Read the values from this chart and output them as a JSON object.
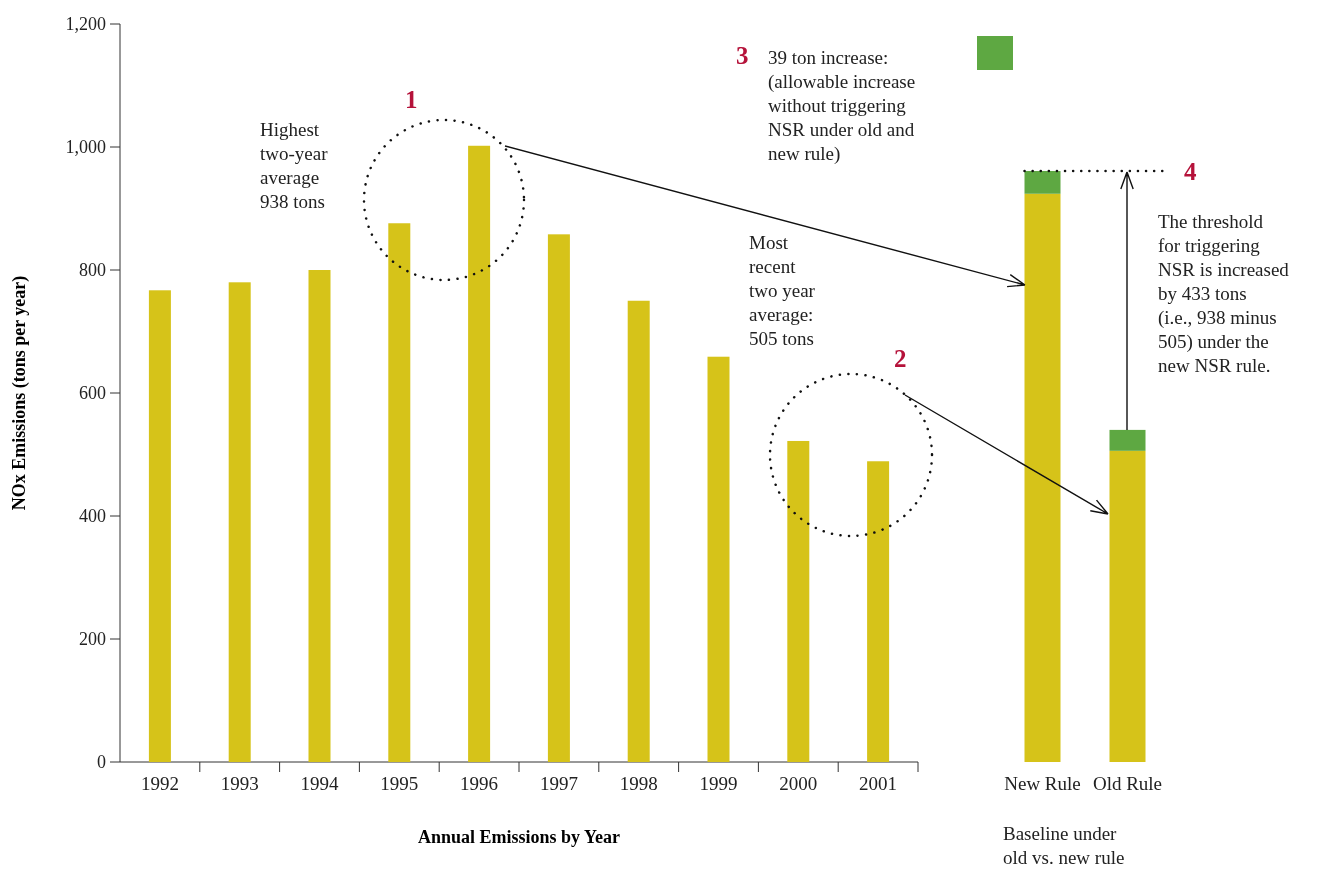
{
  "chart_data": [
    {
      "type": "bar",
      "categories": [
        "1992",
        "1993",
        "1994",
        "1995",
        "1996",
        "1997",
        "1998",
        "1999",
        "2000",
        "2001"
      ],
      "values": [
        767,
        780,
        800,
        876,
        1002,
        858,
        750,
        659,
        522,
        489
      ],
      "color": "#d6c319",
      "ylim": [
        0,
        1200
      ],
      "yticks": [
        0,
        200,
        400,
        600,
        800,
        {
          "value": 1000,
          "label": "1,000"
        },
        {
          "value": 1200,
          "label": "1,200"
        }
      ],
      "ylabel": "NOx Emissions (tons per year)",
      "xlabel": "Annual Emissions by Year",
      "annotations": [
        "1",
        "Highest two-year average 938 tons",
        "2",
        "Most recent two year average: 505 tons"
      ]
    },
    {
      "type": "bar",
      "stacked": true,
      "categories": [
        "New Rule",
        "Old Rule"
      ],
      "series": [
        {
          "color": "#d6c319",
          "values": [
            924,
            506
          ]
        },
        {
          "name": "39 ton increase: (allowable increase without triggering NSR under old and new rule)",
          "color": "#5ea842",
          "values": [
            37,
            34
          ]
        }
      ],
      "ylim": [
        0,
        1200
      ],
      "tick_labels": "x",
      "legend": "top",
      "xlabel": "Baseline under old vs. new rule",
      "ref_lines": [
        {
          "axis": "y",
          "value": 961,
          "line_style": "dotted"
        }
      ],
      "annotations": [
        "3",
        "4",
        "The threshold for triggering NSR is increased by 433 tons (i.e., 938 minus 505) under the new NSR rule."
      ]
    }
  ]
}
